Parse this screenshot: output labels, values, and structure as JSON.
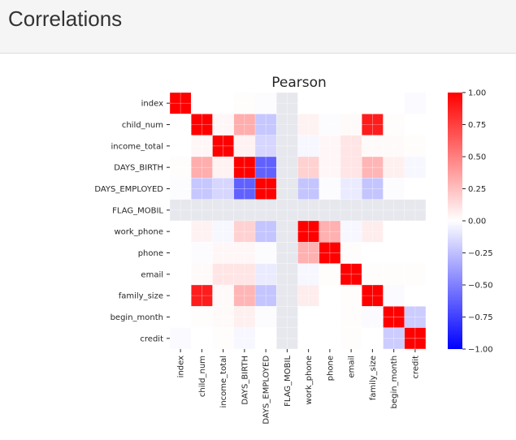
{
  "page": {
    "title": "Correlations"
  },
  "chart_data": {
    "type": "heatmap",
    "title": "Pearson",
    "variables": [
      "index",
      "child_num",
      "income_total",
      "DAYS_BIRTH",
      "DAYS_EMPLOYED",
      "FLAG_MOBIL",
      "work_phone",
      "phone",
      "email",
      "family_size",
      "begin_month",
      "credit"
    ],
    "matrix": [
      [
        1.0,
        0.0,
        0.0,
        0.01,
        -0.01,
        null,
        0.0,
        0.0,
        0.0,
        0.0,
        0.0,
        -0.02
      ],
      [
        0.0,
        1.0,
        0.03,
        0.32,
        -0.22,
        null,
        0.05,
        -0.01,
        0.02,
        0.89,
        0.01,
        0.0
      ],
      [
        0.0,
        0.03,
        1.0,
        0.05,
        -0.16,
        null,
        -0.03,
        0.03,
        0.1,
        0.02,
        0.02,
        0.01
      ],
      [
        0.01,
        0.32,
        0.05,
        1.0,
        -0.62,
        null,
        0.18,
        0.03,
        0.1,
        0.29,
        0.06,
        -0.03
      ],
      [
        -0.01,
        -0.22,
        -0.16,
        -0.62,
        1.0,
        null,
        -0.23,
        -0.01,
        -0.08,
        -0.23,
        -0.01,
        0.0
      ],
      [
        null,
        null,
        null,
        null,
        null,
        null,
        null,
        null,
        null,
        null,
        null,
        null
      ],
      [
        0.0,
        0.05,
        -0.03,
        0.18,
        -0.23,
        null,
        1.0,
        0.31,
        -0.03,
        0.07,
        0.0,
        0.0
      ],
      [
        0.0,
        -0.01,
        0.03,
        0.03,
        -0.01,
        null,
        0.31,
        1.0,
        0.01,
        0.0,
        0.0,
        0.0
      ],
      [
        0.0,
        0.02,
        0.1,
        0.1,
        -0.08,
        null,
        -0.03,
        0.01,
        1.0,
        0.01,
        0.01,
        0.01
      ],
      [
        0.0,
        0.89,
        0.02,
        0.29,
        -0.23,
        null,
        0.07,
        0.0,
        0.01,
        1.0,
        -0.02,
        0.0
      ],
      [
        0.0,
        0.01,
        0.02,
        0.06,
        -0.01,
        null,
        0.0,
        0.0,
        0.01,
        -0.02,
        1.0,
        -0.2
      ],
      [
        -0.02,
        0.0,
        0.01,
        -0.03,
        0.0,
        null,
        0.0,
        0.0,
        0.01,
        0.0,
        -0.2,
        1.0
      ]
    ],
    "vmin": -1.0,
    "vmax": 1.0,
    "colormap": "bwr",
    "colorbar_ticks": [
      "1.00",
      "0.75",
      "0.50",
      "0.25",
      "0.00",
      "−0.25",
      "−0.50",
      "−0.75",
      "−1.00"
    ],
    "colorbar_values": [
      1.0,
      0.75,
      0.5,
      0.25,
      0.0,
      -0.25,
      -0.5,
      -0.75,
      -1.0
    ],
    "missing_color": "#e7e8ee",
    "grid_line_color": "#ffffff"
  }
}
